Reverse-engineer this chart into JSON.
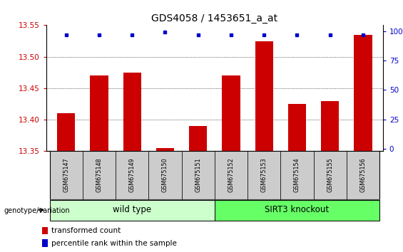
{
  "title": "GDS4058 / 1453651_a_at",
  "samples": [
    "GSM675147",
    "GSM675148",
    "GSM675149",
    "GSM675150",
    "GSM675151",
    "GSM675152",
    "GSM675153",
    "GSM675154",
    "GSM675155",
    "GSM675156"
  ],
  "transformed_count": [
    13.41,
    13.47,
    13.475,
    13.355,
    13.39,
    13.47,
    13.525,
    13.425,
    13.43,
    13.535
  ],
  "percentile_rank": [
    97,
    97,
    97,
    99,
    97,
    97,
    97,
    97,
    97,
    97
  ],
  "y_min": 13.35,
  "y_max": 13.55,
  "y_ticks": [
    13.35,
    13.4,
    13.45,
    13.5,
    13.55
  ],
  "right_y_ticks": [
    0,
    25,
    50,
    75,
    100
  ],
  "bar_color": "#cc0000",
  "dot_color": "#0000cc",
  "wild_type_label": "wild type",
  "knockout_label": "SIRT3 knockout",
  "genotype_label": "genotype/variation",
  "legend_bar_label": "transformed count",
  "legend_dot_label": "percentile rank within the sample",
  "wild_type_color": "#ccffcc",
  "knockout_color": "#66ff66",
  "sample_box_color": "#cccccc",
  "title_fontsize": 10,
  "tick_fontsize": 7.5,
  "label_fontsize": 8
}
